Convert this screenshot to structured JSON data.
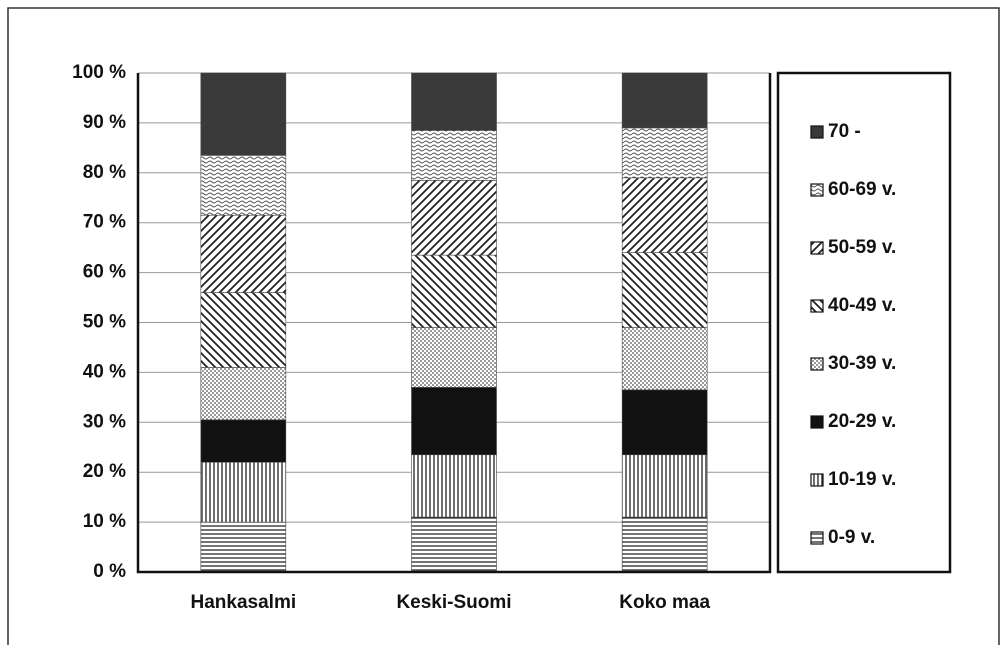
{
  "chart_data": {
    "type": "stacked_bar",
    "categories": [
      "Hankasalmi",
      "Keski-Suomi",
      "Koko maa"
    ],
    "series": [
      {
        "name": "0-9 v.",
        "color": "#222222",
        "values": [
          10,
          11,
          11
        ]
      },
      {
        "name": "10-19 v.",
        "color": "#222222",
        "values": [
          12,
          12.5,
          12.5
        ]
      },
      {
        "name": "20-29 v.",
        "color": "#111111",
        "values": [
          8.5,
          13.5,
          13
        ]
      },
      {
        "name": "30-39 v.",
        "color": "#999999",
        "values": [
          10.5,
          12,
          12.5
        ]
      },
      {
        "name": "40-49 v.",
        "color": "#222222",
        "values": [
          15,
          14.5,
          15
        ]
      },
      {
        "name": "50-59 v.",
        "color": "#222222",
        "values": [
          15.5,
          15,
          15
        ]
      },
      {
        "name": "60-69 v.",
        "color": "#555555",
        "values": [
          12,
          10,
          10
        ]
      },
      {
        "name": "70 -",
        "color": "#3a3a3a",
        "values": [
          16.5,
          11.5,
          11
        ]
      }
    ],
    "ylim": [
      0,
      100
    ],
    "yticks": [
      {
        "value": 0,
        "label": "0 %"
      },
      {
        "value": 10,
        "label": "10 %"
      },
      {
        "value": 20,
        "label": "20 %"
      },
      {
        "value": 30,
        "label": "30 %"
      },
      {
        "value": 40,
        "label": "40 %"
      },
      {
        "value": 50,
        "label": "50 %"
      },
      {
        "value": 60,
        "label": "60 %"
      },
      {
        "value": 70,
        "label": "70 %"
      },
      {
        "value": 80,
        "label": "80 %"
      },
      {
        "value": 90,
        "label": "90 %"
      },
      {
        "value": 100,
        "label": "100 %"
      }
    ],
    "grid": true,
    "legend": "right"
  }
}
